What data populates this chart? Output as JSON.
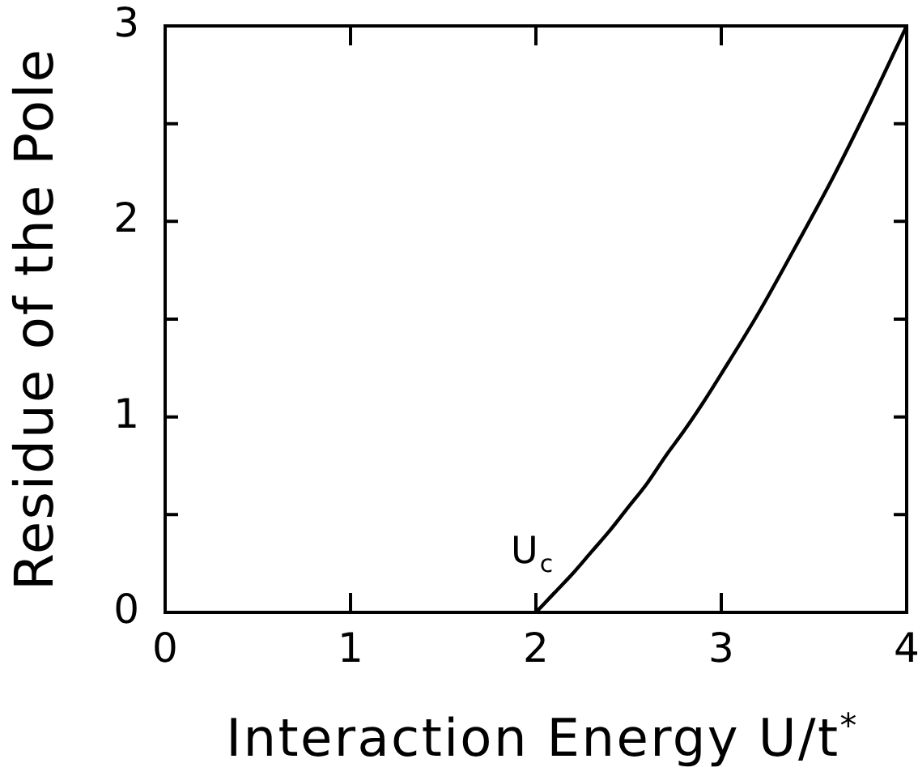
{
  "chart_data": {
    "type": "line",
    "xlabel": "Interaction Energy U/t$^{*}$",
    "ylabel": "Residue of the Pole",
    "x": [
      2,
      2.1,
      2.2,
      2.3,
      2.4,
      2.5,
      2.6,
      2.7,
      2.8,
      2.9,
      3.0,
      3.2,
      3.4,
      3.6,
      3.8,
      4.0
    ],
    "series": [
      {
        "color": "#000000",
        "values": [
          0,
          0.1,
          0.2,
          0.31,
          0.42,
          0.54,
          0.66,
          0.8,
          0.93,
          1.07,
          1.22,
          1.53,
          1.87,
          2.22,
          2.6,
          3.0
        ]
      }
    ],
    "xlim": [
      0,
      4
    ],
    "ylim": [
      0,
      3
    ],
    "xticks": [
      0,
      1,
      2,
      3,
      4
    ],
    "yticks": [
      0,
      {
        "value": 0.5,
        "label": null
      },
      1,
      {
        "value": 1.5,
        "label": null
      },
      2,
      {
        "value": 2.5,
        "label": null
      },
      3
    ],
    "grid": false,
    "legend": false,
    "marker": "none",
    "line_style": "solid",
    "annotations": [
      {
        "text": "U$_{c}$",
        "x": 2,
        "y": 0
      }
    ]
  }
}
